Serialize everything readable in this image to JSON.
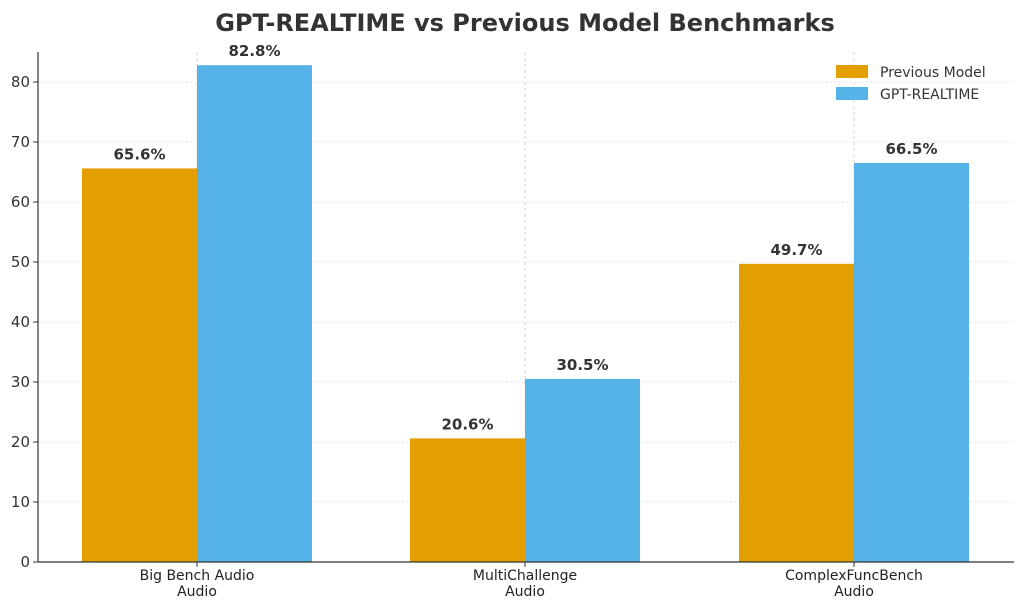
{
  "chart_data": {
    "type": "bar",
    "title": "GPT-REALTIME vs Previous Model Benchmarks",
    "xlabel": "",
    "ylabel": "",
    "categories": [
      [
        "Big Bench Audio",
        "Audio"
      ],
      [
        "MultiChallenge",
        "Audio"
      ],
      [
        "ComplexFuncBench",
        "Audio"
      ]
    ],
    "series": [
      {
        "name": "Previous Model",
        "values": [
          65.6,
          20.6,
          49.7
        ],
        "labels": [
          "65.6%",
          "20.6%",
          "49.7%"
        ],
        "color": "#E39F00"
      },
      {
        "name": "GPT-REALTIME",
        "values": [
          82.8,
          30.5,
          66.5
        ],
        "labels": [
          "82.8%",
          "30.5%",
          "66.5%"
        ],
        "color": "#56B3E8"
      }
    ],
    "ylim": [
      0,
      85
    ],
    "yticks": [
      0,
      10,
      20,
      30,
      40,
      50,
      60,
      70,
      80
    ],
    "grid": true,
    "legend_position": "top-right"
  }
}
